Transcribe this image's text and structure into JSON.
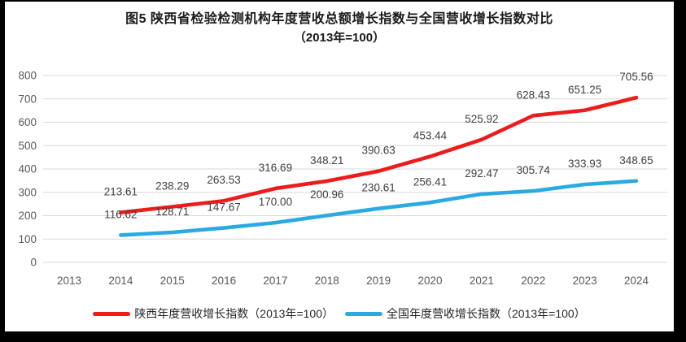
{
  "chart_data": {
    "type": "line",
    "title": "图5  陕西省检验检测机构年度营收总额增长指数与全国营收增长指数对比",
    "subtitle": "（2013年=100）",
    "categories": [
      "2013",
      "2014",
      "2015",
      "2016",
      "2017",
      "2018",
      "2019",
      "2020",
      "2021",
      "2022",
      "2023",
      "2024"
    ],
    "series": [
      {
        "name": "陕西年度营收增长指数（2013年=100）",
        "color": "#ed1c1c",
        "values": [
          null,
          213.61,
          238.29,
          263.53,
          316.69,
          348.21,
          390.63,
          453.44,
          525.92,
          628.43,
          651.25,
          705.56
        ]
      },
      {
        "name": "全国年度营收增长指数（2013年=100）",
        "color": "#29abe2",
        "values": [
          null,
          116.62,
          128.71,
          147.67,
          170.0,
          200.96,
          230.61,
          256.41,
          292.47,
          305.74,
          333.93,
          348.65
        ]
      }
    ],
    "ylim": [
      0,
      800
    ],
    "ytick_step": 100,
    "grid": true,
    "legend_position": "bottom",
    "value_label_decimals": 2,
    "xlabel": "",
    "ylabel": "",
    "colors": {
      "gridline": "#d9d9d9",
      "axis_text": "#595959",
      "value_label_text": "#404040",
      "title_text": "#1a1a1a",
      "frame_border": "#000000",
      "plot_background": "#ffffff"
    }
  }
}
